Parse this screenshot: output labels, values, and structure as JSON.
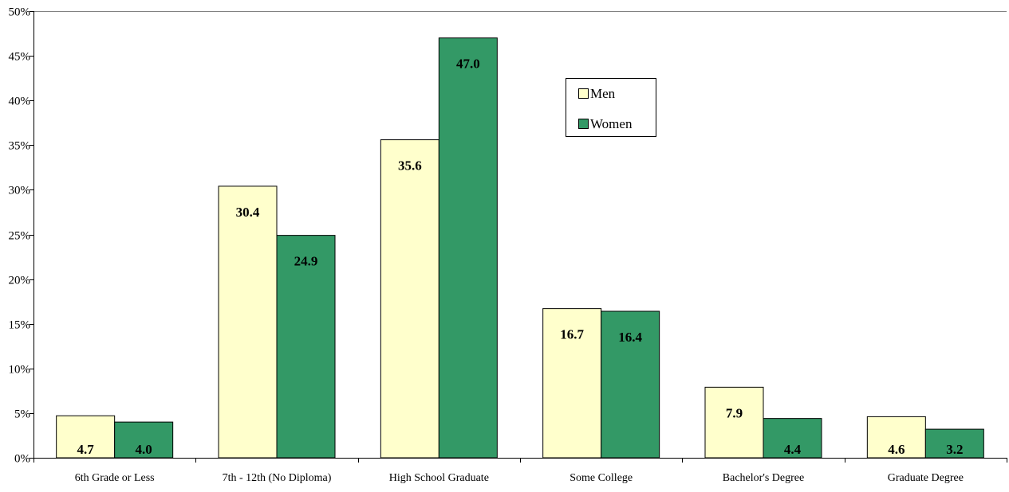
{
  "chart_data": {
    "type": "bar",
    "title": "",
    "xlabel": "",
    "ylabel": "",
    "categories": [
      "6th Grade or Less",
      "7th - 12th (No Diploma)",
      "High School Graduate",
      "Some College",
      "Bachelor's Degree",
      "Graduate Degree"
    ],
    "series": [
      {
        "name": "Men",
        "color": "#ffffcc",
        "values": [
          4.7,
          30.4,
          35.6,
          16.7,
          7.9,
          4.6
        ]
      },
      {
        "name": "Women",
        "color": "#339966",
        "values": [
          4.0,
          24.9,
          47.0,
          16.4,
          4.4,
          3.2
        ]
      }
    ],
    "ylim": [
      0,
      50
    ],
    "yticks": [
      "0%",
      "5%",
      "10%",
      "15%",
      "20%",
      "25%",
      "30%",
      "35%",
      "40%",
      "45%",
      "50%"
    ],
    "grid": false,
    "legend_position": "top-center-right",
    "data_label_format": "one-decimal"
  }
}
